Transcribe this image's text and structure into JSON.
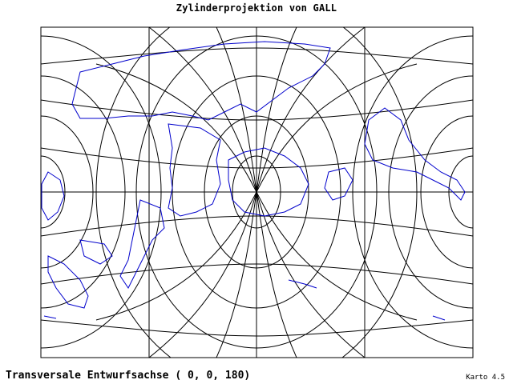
{
  "map": {
    "title": "Zylinderprojektion von GALL",
    "subtitle": "Transversale Entwurfsachse ( 0, 0, 180)",
    "credit": "Karto 4.5",
    "colors": {
      "graticule": "#000000",
      "coastline": "#0000cc",
      "background": "#ffffff"
    }
  }
}
